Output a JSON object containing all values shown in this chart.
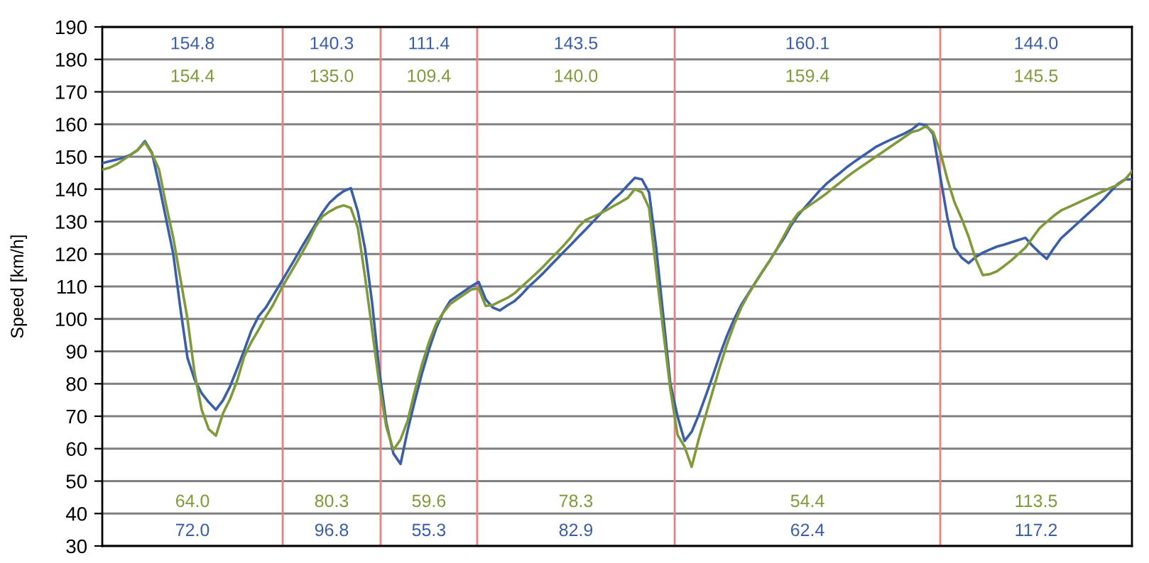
{
  "chart_data": {
    "type": "line",
    "ylabel": "Speed [km/h]",
    "ylim": [
      30,
      190
    ],
    "yticks": [
      30,
      40,
      50,
      60,
      70,
      80,
      90,
      100,
      110,
      120,
      130,
      140,
      150,
      160,
      170,
      180,
      190
    ],
    "tick_labels": "y",
    "grid": "y",
    "marker": "none",
    "line_style": "solid",
    "categories": [
      null,
      null,
      null,
      null,
      null,
      null,
      null,
      null,
      null,
      null,
      null,
      null,
      null,
      null,
      null,
      null,
      null,
      null,
      null,
      null,
      null,
      null,
      null,
      null,
      null,
      null,
      null,
      null,
      null,
      null,
      null,
      null,
      null,
      null,
      null,
      null,
      null,
      null,
      null,
      null,
      null,
      null,
      null,
      null,
      null,
      null,
      null,
      null,
      null,
      null,
      null,
      null,
      null,
      null,
      null,
      null,
      null,
      null,
      null,
      null,
      null,
      null,
      null,
      null,
      null,
      null,
      null,
      null,
      null,
      null,
      null,
      null,
      null,
      null,
      null,
      null,
      null,
      null,
      null,
      null,
      null,
      null,
      null,
      null,
      null,
      null,
      null,
      null,
      null,
      null,
      null,
      null,
      null,
      null,
      null,
      null,
      null,
      null,
      null,
      null,
      null,
      null,
      null,
      null,
      null,
      null,
      null,
      null,
      null,
      null,
      null,
      null,
      null,
      null,
      null,
      null,
      null,
      null,
      null,
      null,
      null,
      null,
      null,
      null,
      null,
      null,
      null,
      null,
      null,
      null,
      null,
      null,
      null,
      null,
      null,
      null,
      null,
      null,
      null,
      null,
      null,
      null,
      null,
      null,
      null,
      null
    ],
    "series": [
      {
        "color": "#3a5ea8",
        "values": [
          148,
          148.6,
          149.1,
          149.7,
          150.6,
          152.1,
          154.8,
          151.2,
          141.4,
          130.7,
          120,
          103.3,
          88,
          81.3,
          77.1,
          74.3,
          72,
          74.9,
          79.2,
          84.7,
          90.4,
          96.4,
          100.8,
          103.4,
          107,
          110.6,
          114.3,
          118,
          121.8,
          125.5,
          129.1,
          132.8,
          135.8,
          137.8,
          139.4,
          140.3,
          133,
          121.7,
          105,
          84.2,
          68,
          58.5,
          55.3,
          65.6,
          74.6,
          83,
          90.5,
          97,
          102,
          105.6,
          107.1,
          108.6,
          110.1,
          111.4,
          106,
          103.5,
          102.6,
          104.1,
          105.4,
          107.4,
          109.8,
          111.8,
          113.9,
          116.2,
          118.4,
          120.7,
          122.9,
          125.2,
          127.4,
          129.7,
          132,
          134.5,
          136.8,
          138.8,
          141.2,
          143.5,
          143,
          139,
          122,
          101,
          80,
          70,
          62.4,
          65.2,
          70.4,
          76.4,
          82.6,
          89.1,
          95,
          100,
          104.4,
          107.9,
          111.3,
          114.7,
          118,
          121.5,
          124.9,
          128.8,
          132,
          134.5,
          137,
          139.5,
          141.7,
          143.5,
          145.2,
          147,
          148.6,
          150.1,
          151.6,
          153.1,
          154.2,
          155.2,
          156.2,
          157.2,
          158.4,
          160.1,
          159.7,
          157,
          144,
          131.3,
          122,
          118.9,
          117.2,
          119.1,
          120.4,
          121.4,
          122.3,
          122.9,
          123.6,
          124.3,
          125,
          122.5,
          120.4,
          118.5,
          121.8,
          124.8,
          126.8,
          128.8,
          130.8,
          132.8,
          134.8,
          136.9,
          139.3,
          141.6,
          143,
          143
        ]
      },
      {
        "color": "#7f9a3a",
        "values": [
          146,
          146.6,
          147.6,
          149.1,
          150.6,
          152.1,
          154.4,
          151,
          146,
          135,
          125,
          112.5,
          100,
          83.3,
          72,
          66,
          64,
          70.9,
          75.3,
          81,
          88.5,
          92.9,
          96.6,
          100.6,
          104.1,
          108.4,
          112.3,
          116,
          119.8,
          123.8,
          128.3,
          131.6,
          133.1,
          134.3,
          135,
          134.2,
          128,
          113,
          96.7,
          80,
          66.7,
          59.6,
          62.8,
          68.6,
          77.6,
          85.8,
          92.8,
          98.4,
          101.9,
          104.6,
          106.1,
          107.6,
          109.1,
          109.4,
          104,
          104.3,
          105.4,
          106.4,
          107.8,
          109.8,
          111.8,
          113.8,
          115.9,
          118.2,
          120.4,
          122.7,
          125.2,
          128.2,
          130.4,
          131.4,
          132.4,
          133.5,
          134.8,
          136,
          137.3,
          140,
          139,
          134.2,
          115,
          96.3,
          78.3,
          64.3,
          60.6,
          54.4,
          63,
          70.5,
          78,
          85.5,
          92.4,
          98.4,
          103.6,
          107.6,
          111.3,
          114.7,
          118,
          121.6,
          125.6,
          129.6,
          132.6,
          134.1,
          135.6,
          137.1,
          138.7,
          140.5,
          142.2,
          144,
          145.6,
          147.1,
          148.6,
          150.1,
          151.6,
          153.1,
          154.6,
          156.1,
          157.6,
          158.2,
          159.4,
          157.6,
          151.6,
          143.1,
          136,
          131,
          125.3,
          118.4,
          113.5,
          113.8,
          114.7,
          116.3,
          118,
          120,
          122,
          125,
          128,
          129.9,
          131.8,
          133.4,
          134.4,
          135.4,
          136.4,
          137.4,
          138.4,
          139.4,
          140.4,
          141.3,
          142.9,
          145.5
        ]
      }
    ],
    "annotations": [
      "154.8",
      "140.3",
      "111.4",
      "143.5",
      "160.1",
      "144.0",
      "154.4",
      "135.0",
      "109.4",
      "140.0",
      "159.4",
      "145.5",
      "64.0",
      "80.3",
      "59.6",
      "78.3",
      "54.4",
      "113.5",
      "72.0",
      "96.8",
      "55.3",
      "82.9",
      "62.4",
      "117.2"
    ]
  }
}
